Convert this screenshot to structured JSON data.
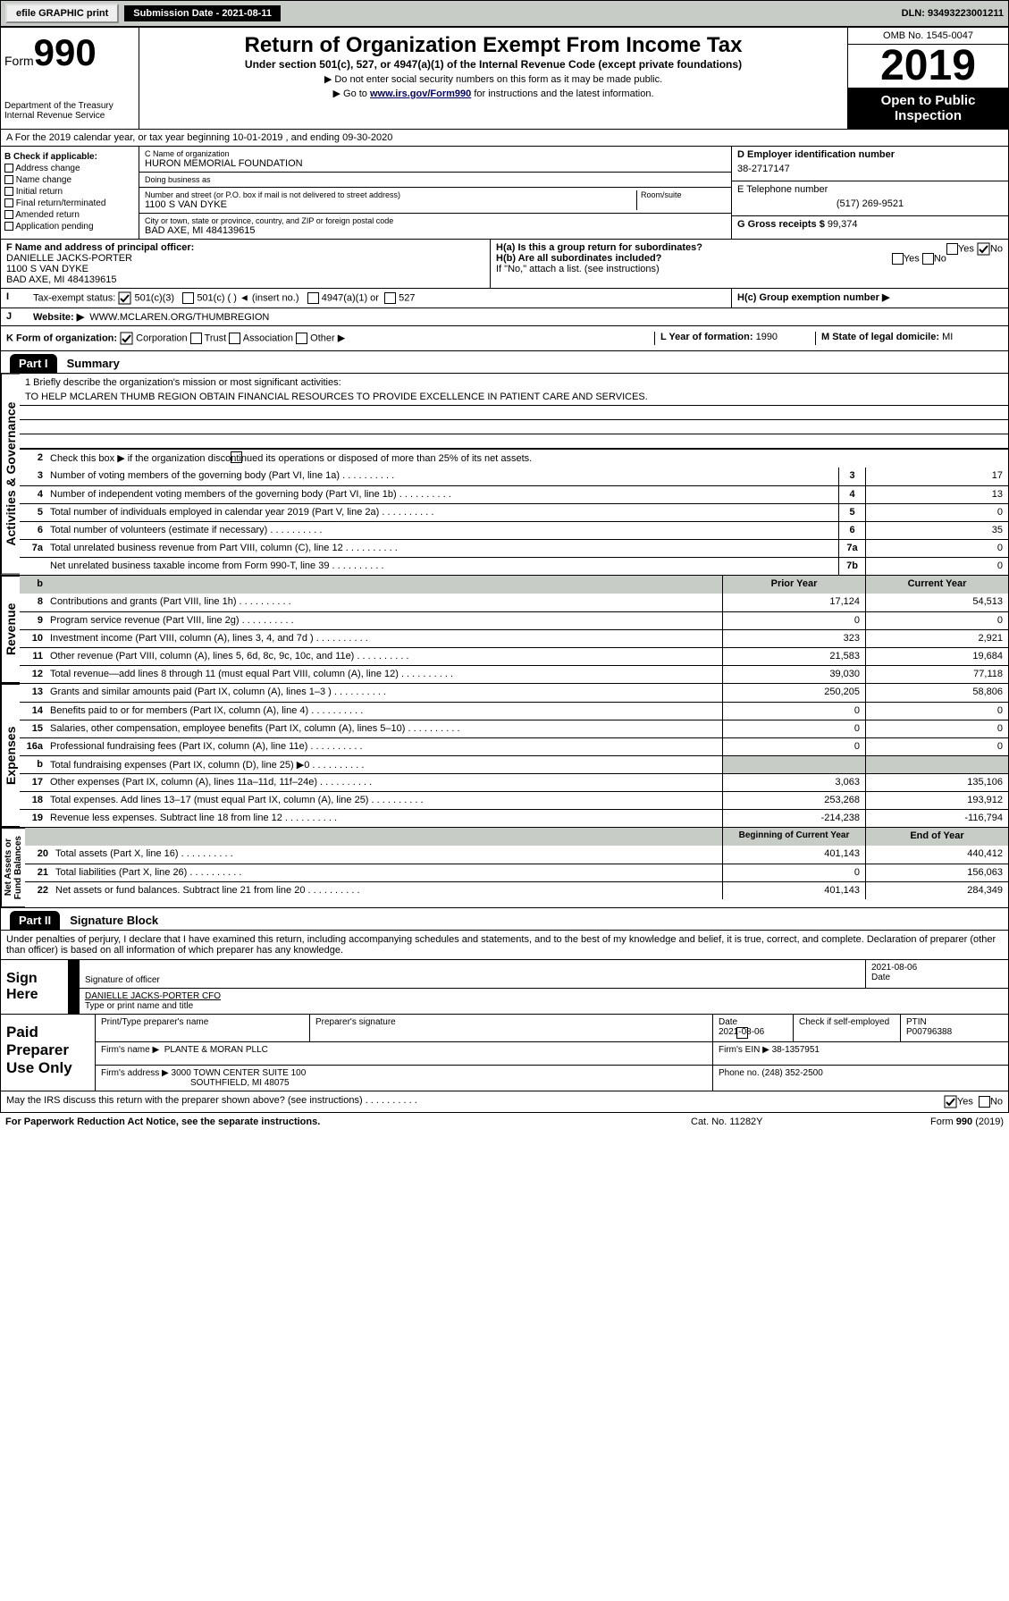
{
  "topbar": {
    "efile": "efile GRAPHIC print",
    "subdate": "Submission Date - 2021-08-11",
    "dln": "DLN: 93493223001211"
  },
  "header": {
    "form": "Form",
    "num": "990",
    "dept": "Department of the Treasury\nInternal Revenue Service",
    "title": "Return of Organization Exempt From Income Tax",
    "sub": "Under section 501(c), 527, or 4947(a)(1) of the Internal Revenue Code (except private foundations)",
    "inst1": "▶ Do not enter social security numbers on this form as it may be made public.",
    "inst2a": "▶ Go to ",
    "inst2_link": "www.irs.gov/Form990",
    "inst2b": " for instructions and the latest information.",
    "omb": "OMB No. 1545-0047",
    "year": "2019",
    "otp": "Open to Public Inspection"
  },
  "a_line": "A  For the 2019 calendar year, or tax year beginning 10-01-2019    , and ending 09-30-2020",
  "b": {
    "label": "B Check if applicable:",
    "opts": [
      "Address change",
      "Name change",
      "Initial return",
      "Final return/terminated",
      "Amended return",
      "Application pending"
    ]
  },
  "c": {
    "name_label": "C Name of organization",
    "name": "HURON MEMORIAL FOUNDATION",
    "dba_label": "Doing business as",
    "dba": "",
    "addr_label": "Number and street (or P.O. box if mail is not delivered to street address)",
    "room_label": "Room/suite",
    "addr": "1100 S VAN DYKE",
    "city_label": "City or town, state or province, country, and ZIP or foreign postal code",
    "city": "BAD AXE, MI  484139615"
  },
  "d": {
    "label": "D Employer identification number",
    "val": "38-2717147"
  },
  "e": {
    "label": "E Telephone number",
    "val": "(517) 269-9521"
  },
  "g": {
    "label": "G Gross receipts $",
    "val": "99,374"
  },
  "f": {
    "label": "F Name and address of principal officer:",
    "name": "DANIELLE JACKS-PORTER",
    "addr": "1100 S VAN DYKE",
    "city": "BAD AXE, MI  484139615"
  },
  "h": {
    "a": "H(a)  Is this a group return for subordinates?",
    "b": "H(b)  Are all subordinates included?",
    "note": "If \"No,\" attach a list. (see instructions)",
    "c": "H(c)  Group exemption number ▶"
  },
  "i": {
    "label": "Tax-exempt status:",
    "o1": "501(c)(3)",
    "o2": "501(c) (  ) ◄ (insert no.)",
    "o3": "4947(a)(1) or",
    "o4": "527"
  },
  "j": {
    "label": "Website: ▶",
    "val": "WWW.MCLAREN.ORG/THUMBREGION"
  },
  "k": {
    "label": "K Form of organization:",
    "opts": [
      "Corporation",
      "Trust",
      "Association",
      "Other ▶"
    ]
  },
  "l": {
    "label": "L Year of formation:",
    "val": "1990"
  },
  "m": {
    "label": "M State of legal domicile:",
    "val": "MI"
  },
  "part1": {
    "hdr": "Part I",
    "title": "Summary"
  },
  "summary": {
    "l1": "1  Briefly describe the organization's mission or most significant activities:",
    "mission": "TO HELP MCLAREN THUMB REGION OBTAIN FINANCIAL RESOURCES TO PROVIDE EXCELLENCE IN PATIENT CARE AND SERVICES.",
    "l2": "Check this box ▶         if the organization discontinued its operations or disposed of more than 25% of its net assets.",
    "rows_a": [
      {
        "n": "3",
        "d": "Number of voting members of the governing body (Part VI, line 1a)",
        "box": "3",
        "v": "17"
      },
      {
        "n": "4",
        "d": "Number of independent voting members of the governing body (Part VI, line 1b)",
        "box": "4",
        "v": "13"
      },
      {
        "n": "5",
        "d": "Total number of individuals employed in calendar year 2019 (Part V, line 2a)",
        "box": "5",
        "v": "0"
      },
      {
        "n": "6",
        "d": "Total number of volunteers (estimate if necessary)",
        "box": "6",
        "v": "35"
      },
      {
        "n": "7a",
        "d": "Total unrelated business revenue from Part VIII, column (C), line 12",
        "box": "7a",
        "v": "0"
      },
      {
        "n": "",
        "d": "Net unrelated business taxable income from Form 990-T, line 39",
        "box": "7b",
        "v": "0"
      }
    ],
    "col_py": "Prior Year",
    "col_cy": "Current Year",
    "rows_rev": [
      {
        "n": "8",
        "d": "Contributions and grants (Part VIII, line 1h)",
        "py": "17,124",
        "cy": "54,513"
      },
      {
        "n": "9",
        "d": "Program service revenue (Part VIII, line 2g)",
        "py": "0",
        "cy": "0"
      },
      {
        "n": "10",
        "d": "Investment income (Part VIII, column (A), lines 3, 4, and 7d )",
        "py": "323",
        "cy": "2,921"
      },
      {
        "n": "11",
        "d": "Other revenue (Part VIII, column (A), lines 5, 6d, 8c, 9c, 10c, and 11e)",
        "py": "21,583",
        "cy": "19,684"
      },
      {
        "n": "12",
        "d": "Total revenue—add lines 8 through 11 (must equal Part VIII, column (A), line 12)",
        "py": "39,030",
        "cy": "77,118"
      }
    ],
    "rows_exp": [
      {
        "n": "13",
        "d": "Grants and similar amounts paid (Part IX, column (A), lines 1–3 )",
        "py": "250,205",
        "cy": "58,806"
      },
      {
        "n": "14",
        "d": "Benefits paid to or for members (Part IX, column (A), line 4)",
        "py": "0",
        "cy": "0"
      },
      {
        "n": "15",
        "d": "Salaries, other compensation, employee benefits (Part IX, column (A), lines 5–10)",
        "py": "0",
        "cy": "0"
      },
      {
        "n": "16a",
        "d": "Professional fundraising fees (Part IX, column (A), line 11e)",
        "py": "0",
        "cy": "0"
      },
      {
        "n": "b",
        "d": "Total fundraising expenses (Part IX, column (D), line 25) ▶0",
        "py": "",
        "cy": "",
        "shade": true
      },
      {
        "n": "17",
        "d": "Other expenses (Part IX, column (A), lines 11a–11d, 11f–24e)",
        "py": "3,063",
        "cy": "135,106"
      },
      {
        "n": "18",
        "d": "Total expenses. Add lines 13–17 (must equal Part IX, column (A), line 25)",
        "py": "253,268",
        "cy": "193,912"
      },
      {
        "n": "19",
        "d": "Revenue less expenses. Subtract line 18 from line 12",
        "py": "-214,238",
        "cy": "-116,794"
      }
    ],
    "col_boy": "Beginning of Current Year",
    "col_eoy": "End of Year",
    "rows_net": [
      {
        "n": "20",
        "d": "Total assets (Part X, line 16)",
        "py": "401,143",
        "cy": "440,412"
      },
      {
        "n": "21",
        "d": "Total liabilities (Part X, line 26)",
        "py": "0",
        "cy": "156,063"
      },
      {
        "n": "22",
        "d": "Net assets or fund balances. Subtract line 21 from line 20",
        "py": "401,143",
        "cy": "284,349"
      }
    ]
  },
  "vtabs": {
    "act": "Activities & Governance",
    "rev": "Revenue",
    "exp": "Expenses",
    "net": "Net Assets or\nFund Balances"
  },
  "part2": {
    "hdr": "Part II",
    "title": "Signature Block"
  },
  "decl": "Under penalties of perjury, I declare that I have examined this return, including accompanying schedules and statements, and to the best of my knowledge and belief, it is true, correct, and complete. Declaration of preparer (other than officer) is based on all information of which preparer has any knowledge.",
  "sign": {
    "here": "Sign Here",
    "sig_label": "Signature of officer",
    "date": "2021-08-06",
    "date_label": "Date",
    "name": "DANIELLE JACKS-PORTER  CFO",
    "name_label": "Type or print name and title"
  },
  "paid": {
    "label": "Paid Preparer Use Only",
    "h1": "Print/Type preparer's name",
    "h2": "Preparer's signature",
    "h3": "Date",
    "h4": "Check         if self-employed",
    "h5": "PTIN",
    "date": "2021-08-06",
    "ptin": "P00796388",
    "firm_label": "Firm's name    ▶",
    "firm": "PLANTE & MORAN PLLC",
    "ein_label": "Firm's EIN ▶",
    "ein": "38-1357951",
    "addr_label": "Firm's address ▶",
    "addr1": "3000 TOWN CENTER SUITE 100",
    "addr2": "SOUTHFIELD, MI  48075",
    "phone_label": "Phone no.",
    "phone": "(248) 352-2500"
  },
  "discuss": "May the IRS discuss this return with the preparer shown above? (see instructions)",
  "foot": {
    "l": "For Paperwork Reduction Act Notice, see the separate instructions.",
    "m": "Cat. No. 11282Y",
    "r": "Form 990 (2019)"
  }
}
